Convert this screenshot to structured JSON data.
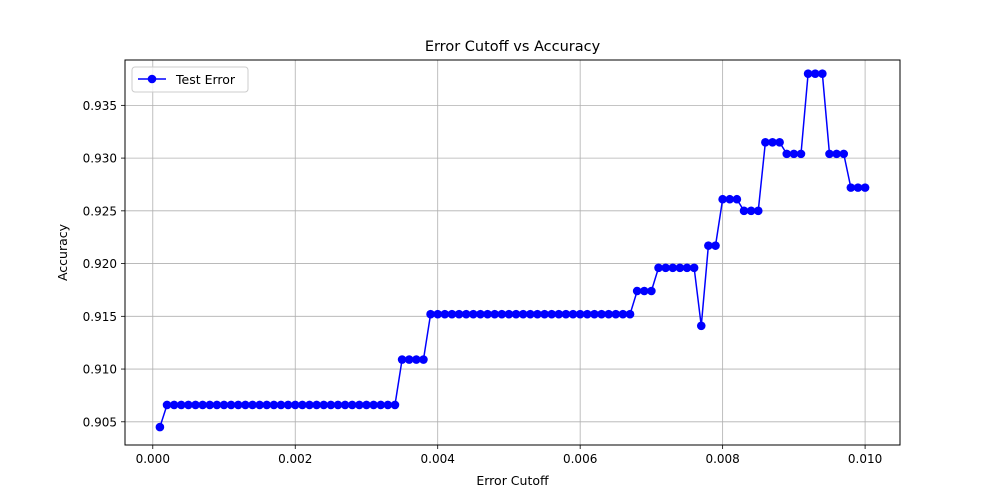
{
  "chart_data": {
    "type": "line",
    "title": "Error Cutoff vs Accuracy",
    "xlabel": "Error Cutoff",
    "ylabel": "Accuracy",
    "xlim": [
      -0.00039,
      0.01049
    ],
    "ylim": [
      0.9028,
      0.9393
    ],
    "x_ticks": [
      0.0,
      0.002,
      0.004,
      0.006,
      0.008,
      0.01
    ],
    "x_tick_labels": [
      "0.000",
      "0.002",
      "0.004",
      "0.006",
      "0.008",
      "0.010"
    ],
    "y_ticks": [
      0.905,
      0.91,
      0.915,
      0.92,
      0.925,
      0.93,
      0.935
    ],
    "y_tick_labels": [
      "0.905",
      "0.910",
      "0.915",
      "0.920",
      "0.925",
      "0.930",
      "0.935"
    ],
    "grid": true,
    "legend_position": "top-left",
    "series": [
      {
        "name": "Test Error",
        "color": "#0000ff",
        "marker": "circle",
        "x": [
          0.0001,
          0.0002,
          0.0003,
          0.0004,
          0.0005,
          0.0006,
          0.0007,
          0.0008,
          0.0009,
          0.001,
          0.0011,
          0.0012,
          0.0013,
          0.0014,
          0.0015,
          0.0016,
          0.0017,
          0.0018,
          0.0019,
          0.002,
          0.0021,
          0.0022,
          0.0023,
          0.0024,
          0.0025,
          0.0026,
          0.0027,
          0.0028,
          0.0029,
          0.003,
          0.0031,
          0.0032,
          0.0033,
          0.0034,
          0.0035,
          0.0036,
          0.0037,
          0.0038,
          0.0039,
          0.004,
          0.0041,
          0.0042,
          0.0043,
          0.0044,
          0.0045,
          0.0046,
          0.0047,
          0.0048,
          0.0049,
          0.005,
          0.0051,
          0.0052,
          0.0053,
          0.0054,
          0.0055,
          0.0056,
          0.0057,
          0.0058,
          0.0059,
          0.006,
          0.0061,
          0.0062,
          0.0063,
          0.0064,
          0.0065,
          0.0066,
          0.0067,
          0.0068,
          0.0069,
          0.007,
          0.0071,
          0.0072,
          0.0073,
          0.0074,
          0.0075,
          0.0076,
          0.0077,
          0.0078,
          0.0079,
          0.008,
          0.0081,
          0.0082,
          0.0083,
          0.0084,
          0.0085,
          0.0086,
          0.0087,
          0.0088,
          0.0089,
          0.009,
          0.0091,
          0.0092,
          0.0093,
          0.0094,
          0.0095,
          0.0096,
          0.0097,
          0.0098,
          0.0099,
          0.01
        ],
        "y": [
          0.9045,
          0.9066,
          0.9066,
          0.9066,
          0.9066,
          0.9066,
          0.9066,
          0.9066,
          0.9066,
          0.9066,
          0.9066,
          0.9066,
          0.9066,
          0.9066,
          0.9066,
          0.9066,
          0.9066,
          0.9066,
          0.9066,
          0.9066,
          0.9066,
          0.9066,
          0.9066,
          0.9066,
          0.9066,
          0.9066,
          0.9066,
          0.9066,
          0.9066,
          0.9066,
          0.9066,
          0.9066,
          0.9066,
          0.9066,
          0.9109,
          0.9109,
          0.9109,
          0.9109,
          0.9152,
          0.9152,
          0.9152,
          0.9152,
          0.9152,
          0.9152,
          0.9152,
          0.9152,
          0.9152,
          0.9152,
          0.9152,
          0.9152,
          0.9152,
          0.9152,
          0.9152,
          0.9152,
          0.9152,
          0.9152,
          0.9152,
          0.9152,
          0.9152,
          0.9152,
          0.9152,
          0.9152,
          0.9152,
          0.9152,
          0.9152,
          0.9152,
          0.9152,
          0.9174,
          0.9174,
          0.9174,
          0.9196,
          0.9196,
          0.9196,
          0.9196,
          0.9196,
          0.9196,
          0.9141,
          0.9217,
          0.9217,
          0.9261,
          0.9261,
          0.9261,
          0.925,
          0.925,
          0.925,
          0.9315,
          0.9315,
          0.9315,
          0.9304,
          0.9304,
          0.9304,
          0.938,
          0.938,
          0.938,
          0.9304,
          0.9304,
          0.9304,
          0.9272,
          0.9272,
          0.9272
        ]
      }
    ]
  }
}
